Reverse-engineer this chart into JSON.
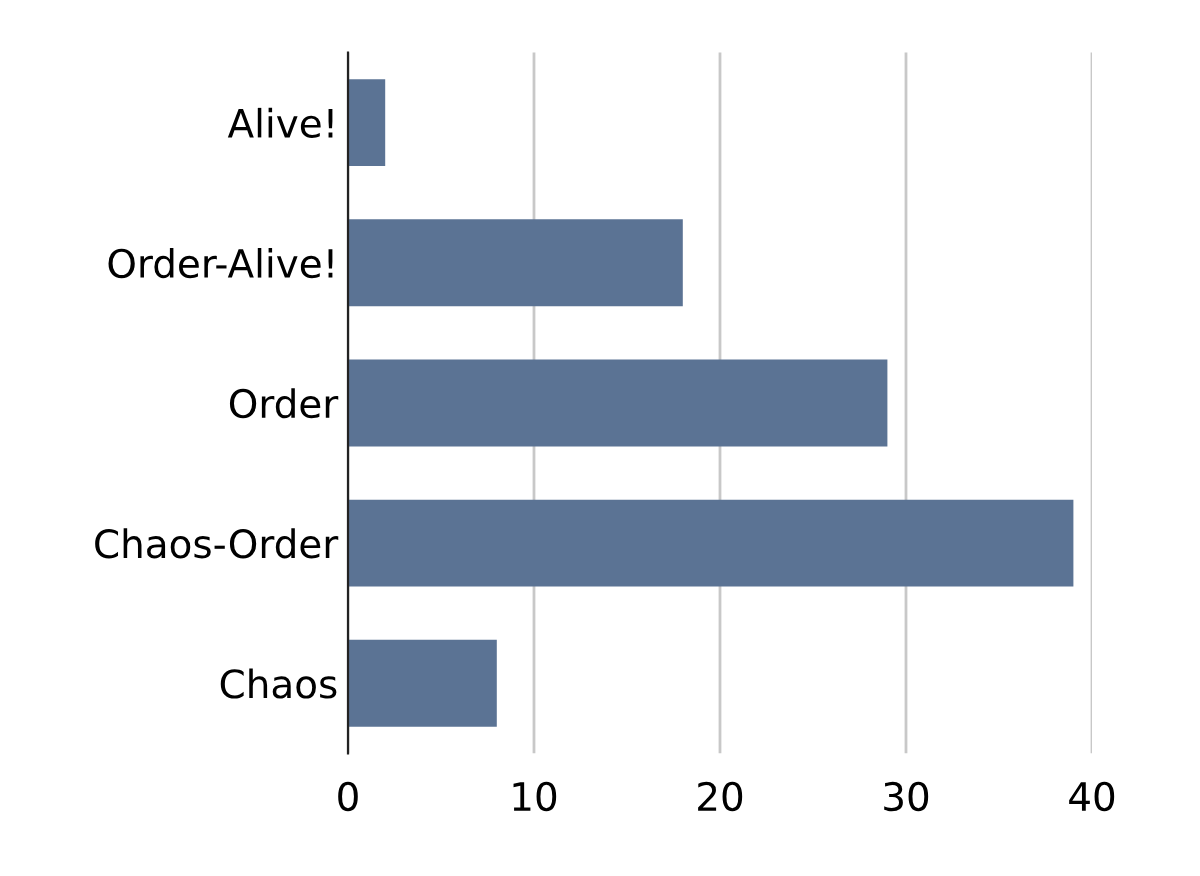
{
  "chart_data": {
    "type": "bar",
    "orientation": "horizontal",
    "categories": [
      "Alive!",
      "Order-Alive!",
      "Order",
      "Chaos-Order",
      "Chaos"
    ],
    "values": [
      2,
      18,
      29,
      39,
      8
    ],
    "color": "#5b7394",
    "xlim": [
      0,
      40
    ],
    "xticks": [
      0,
      10,
      20,
      30,
      40
    ],
    "grid": "x"
  }
}
